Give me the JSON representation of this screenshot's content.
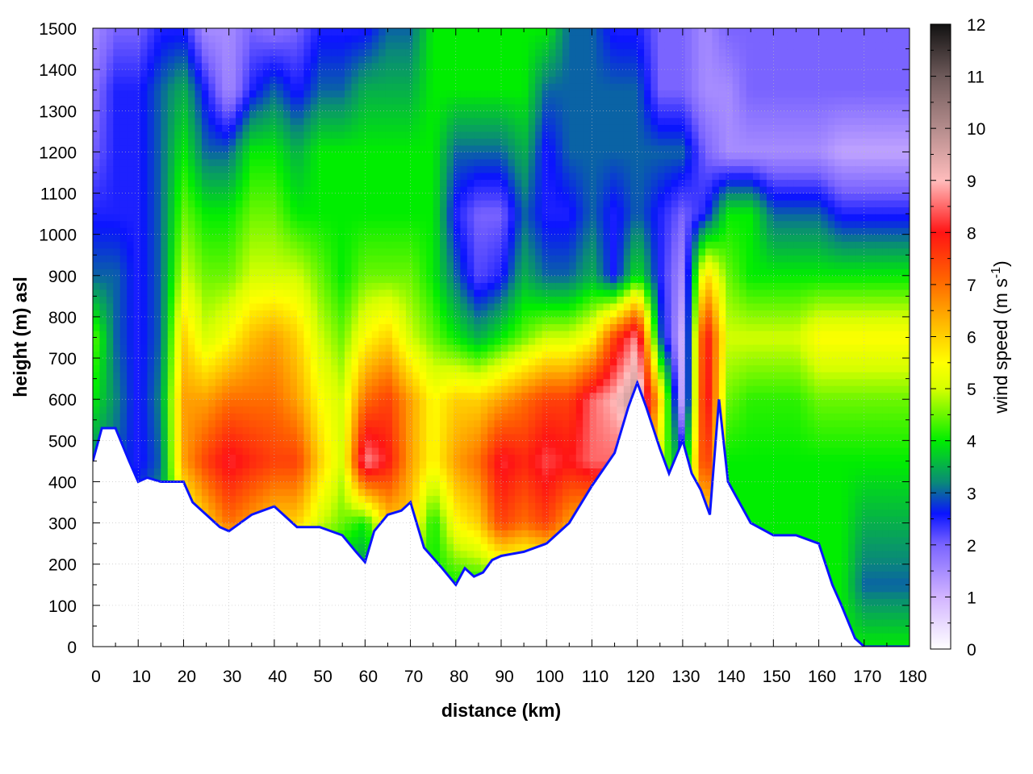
{
  "chart_data": {
    "type": "heatmap",
    "xlabel": "distance (km)",
    "ylabel": "height (m) asl",
    "colorbar_label": "wind speed (m s",
    "colorbar_label_sup": "-1",
    "colorbar_label_close": ")",
    "xlim": [
      0,
      180
    ],
    "ylim": [
      0,
      1500
    ],
    "clim": [
      0,
      12
    ],
    "x_ticks": [
      "0",
      "10",
      "20",
      "30",
      "40",
      "50",
      "60",
      "70",
      "80",
      "90",
      "100",
      "110",
      "120",
      "130",
      "140",
      "150",
      "160",
      "170",
      "180"
    ],
    "y_ticks": [
      "0",
      "100",
      "200",
      "300",
      "400",
      "500",
      "600",
      "700",
      "800",
      "900",
      "1000",
      "1100",
      "1200",
      "1300",
      "1400",
      "1500"
    ],
    "colorbar_ticks": [
      "0",
      "1",
      "2",
      "3",
      "4",
      "5",
      "6",
      "7",
      "8",
      "9",
      "10",
      "11",
      "12"
    ],
    "colormap": [
      {
        "v": 0,
        "color": "#ffffff"
      },
      {
        "v": 1,
        "color": "#d2b4ff"
      },
      {
        "v": 2,
        "color": "#7a64ff"
      },
      {
        "v": 2.6,
        "color": "#0a14ff"
      },
      {
        "v": 3.2,
        "color": "#0a8a78"
      },
      {
        "v": 4,
        "color": "#00ee00"
      },
      {
        "v": 5,
        "color": "#d6ff00"
      },
      {
        "v": 5.5,
        "color": "#ffff00"
      },
      {
        "v": 6.3,
        "color": "#ffb400"
      },
      {
        "v": 7.1,
        "color": "#ff6400"
      },
      {
        "v": 8,
        "color": "#ff1414"
      },
      {
        "v": 9,
        "color": "#ffbcbc"
      },
      {
        "v": 10,
        "color": "#b48c8c"
      },
      {
        "v": 11,
        "color": "#6e5a5a"
      },
      {
        "v": 12,
        "color": "#111111"
      }
    ],
    "terrain_height": {
      "distance": [
        0,
        2,
        5,
        8,
        10,
        12,
        15,
        20,
        22,
        25,
        28,
        30,
        35,
        40,
        45,
        50,
        55,
        58,
        60,
        62,
        65,
        68,
        70,
        73,
        77,
        80,
        82,
        84,
        86,
        88,
        90,
        95,
        100,
        105,
        110,
        115,
        118,
        120,
        122,
        125,
        127,
        130,
        132,
        134,
        136,
        138,
        140,
        145,
        150,
        155,
        160,
        163,
        165,
        168,
        170,
        180
      ],
      "height": [
        450,
        530,
        530,
        450,
        400,
        410,
        400,
        400,
        350,
        320,
        290,
        280,
        320,
        340,
        290,
        290,
        270,
        230,
        205,
        280,
        320,
        330,
        350,
        240,
        190,
        150,
        190,
        170,
        180,
        210,
        220,
        230,
        250,
        300,
        390,
        470,
        580,
        640,
        580,
        480,
        420,
        500,
        420,
        380,
        320,
        600,
        400,
        300,
        270,
        270,
        250,
        150,
        100,
        20,
        0,
        0
      ]
    },
    "wind_speed_grid": {
      "distance": [
        0,
        5,
        10,
        15,
        20,
        25,
        30,
        35,
        40,
        45,
        50,
        55,
        60,
        65,
        70,
        75,
        80,
        85,
        90,
        95,
        100,
        105,
        110,
        115,
        120,
        125,
        130,
        135,
        140,
        145,
        150,
        155,
        160,
        165,
        170,
        175,
        180
      ],
      "height": [
        0,
        150,
        300,
        450,
        600,
        750,
        900,
        1050,
        1200,
        1350,
        1500
      ],
      "values": [
        [
          2,
          2,
          2,
          3,
          3,
          3,
          2.5,
          2.5,
          2.5,
          2.5,
          2.5,
          2.5,
          3,
          4,
          4,
          4,
          4,
          4,
          4,
          4,
          4,
          4,
          4,
          4,
          4,
          4,
          4,
          4,
          4,
          4,
          4,
          4,
          4,
          4,
          4,
          4,
          4
        ],
        [
          2,
          2,
          2,
          3,
          3,
          3,
          3,
          3,
          3,
          3,
          3,
          3,
          3,
          4,
          4,
          4,
          4,
          4,
          4,
          4,
          4,
          4,
          4,
          4,
          4,
          4,
          4,
          4,
          4,
          4,
          4,
          4,
          4,
          4,
          3,
          3,
          3
        ],
        [
          3,
          3,
          3,
          3.5,
          5,
          6,
          7,
          6.5,
          6,
          6,
          5,
          4.5,
          4,
          6,
          6,
          4,
          5.5,
          6,
          7.5,
          7,
          7.5,
          6.5,
          6,
          6.5,
          6,
          4.5,
          4,
          6,
          4,
          4,
          4,
          4,
          4,
          4,
          3.5,
          3.5,
          3.5
        ],
        [
          3.2,
          3,
          2.5,
          3,
          6.5,
          7.5,
          8.2,
          7.8,
          7.5,
          7.5,
          6,
          5,
          8.8,
          8,
          6.5,
          5.5,
          6.5,
          7,
          8.2,
          7.8,
          8.3,
          8,
          8.5,
          8.5,
          8,
          5,
          3,
          8,
          4,
          4,
          4,
          4,
          4,
          4,
          4,
          4,
          4
        ],
        [
          4,
          3.2,
          2.5,
          3.2,
          6.5,
          6.5,
          7,
          7,
          7,
          6.5,
          5.5,
          5,
          7,
          7.5,
          6.5,
          5.5,
          6,
          6,
          6.5,
          7,
          7.5,
          7.5,
          8.5,
          9,
          10,
          6,
          1,
          8.5,
          4.5,
          4.2,
          4.2,
          4.2,
          4.5,
          4.5,
          4.5,
          4.5,
          4.5
        ],
        [
          4.5,
          3,
          2.5,
          3,
          6,
          5,
          5.5,
          6.2,
          6.5,
          6,
          5,
          4.5,
          5.5,
          6,
          5,
          4.5,
          4,
          3.5,
          4,
          4.5,
          5,
          5,
          5.5,
          7.5,
          8.8,
          3,
          1,
          8.3,
          5,
          5,
          5,
          5,
          5.5,
          5.5,
          5.5,
          5.5,
          5.5
        ],
        [
          3,
          3,
          2.5,
          3,
          5,
          4.5,
          4.5,
          5,
          5,
          5,
          4.5,
          4,
          4.5,
          4.5,
          4.5,
          4,
          3,
          2.2,
          2.5,
          3.5,
          3,
          3,
          3.5,
          2.5,
          4,
          2.5,
          1.5,
          6,
          4.5,
          4,
          4,
          4,
          4,
          4,
          4,
          4,
          4
        ],
        [
          2.5,
          2.5,
          2.5,
          3,
          4.5,
          4,
          4,
          4.5,
          4.5,
          4,
          4,
          4,
          4,
          4,
          4,
          4,
          2.5,
          2,
          2,
          3,
          2.5,
          2.5,
          3,
          2.5,
          3,
          2.5,
          2,
          2.5,
          4,
          4,
          3,
          3,
          3,
          2.5,
          2.5,
          2.5,
          2.5
        ],
        [
          2,
          2.5,
          2.5,
          3,
          4,
          3,
          3,
          4,
          4,
          3.5,
          4,
          4,
          4,
          4,
          4,
          4,
          3,
          3,
          3,
          3.5,
          2.5,
          3,
          3,
          3,
          3,
          3,
          3,
          2,
          1.5,
          1.5,
          1.5,
          1.5,
          1.5,
          1.2,
          1.2,
          1.2,
          1.2
        ],
        [
          1.8,
          2.5,
          2.5,
          3,
          3.5,
          2.5,
          1.5,
          2.5,
          3,
          2.5,
          3,
          3,
          3.5,
          3.5,
          3.5,
          4,
          4,
          4,
          4,
          4,
          3,
          3,
          3,
          3,
          3,
          2,
          2,
          1.5,
          1.5,
          2,
          2,
          2,
          2,
          2,
          2,
          2,
          2
        ],
        [
          1.5,
          2,
          2,
          2.5,
          2.5,
          1.5,
          1.5,
          2,
          1.8,
          2,
          2.5,
          2.5,
          2.5,
          3,
          3,
          4,
          4,
          4,
          4,
          4,
          4,
          3,
          3,
          2.5,
          2.5,
          2,
          2,
          1.5,
          2,
          2,
          2,
          2,
          2,
          2,
          2,
          2,
          2
        ]
      ]
    }
  }
}
